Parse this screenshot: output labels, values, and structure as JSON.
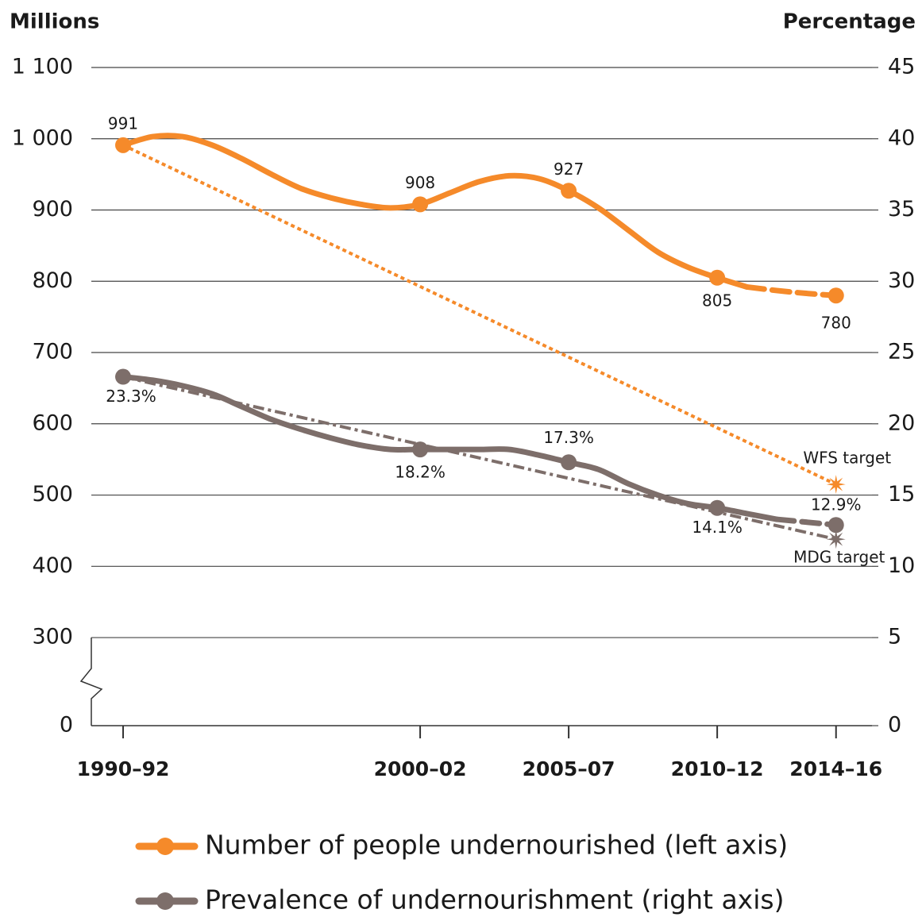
{
  "chart_data": {
    "type": "line",
    "y_label": "Millions",
    "y2_label": "Percentage",
    "x": [
      1991,
      1992,
      1993,
      1994,
      1995,
      1996,
      1997,
      1998,
      1999,
      2000,
      2001,
      2002,
      2003,
      2004,
      2005,
      2006,
      2007,
      2008,
      2009,
      2010,
      2011,
      2012,
      2013,
      2014,
      2015
    ],
    "xlim": [
      1989.93,
      2016.21
    ],
    "xticks": [
      {
        "value": 1991,
        "label": "1990–92"
      },
      {
        "value": 2001,
        "label": "2000–02"
      },
      {
        "value": 2006,
        "label": "2005–07"
      },
      {
        "value": 2011,
        "label": "2010–12"
      },
      {
        "value": 2015,
        "label": "2014–16"
      }
    ],
    "ylim": [
      0,
      1100
    ],
    "yticks": [
      0,
      300,
      400,
      500,
      600,
      700,
      800,
      900,
      {
        "value": 1000,
        "label": "1 000"
      },
      {
        "value": 1100,
        "label": "1 100"
      }
    ],
    "y2lim": [
      0,
      45
    ],
    "y2ticks": [
      0,
      5,
      10,
      15,
      20,
      25,
      30,
      35,
      40,
      45
    ],
    "axis_break": true,
    "grid": true,
    "series": [
      {
        "name": "Number of people undernourished (left axis)",
        "color": "#f58a2a",
        "axis": "y",
        "dashed_after": 2012,
        "values": [
          991,
          1003,
          1003,
          991,
          972,
          950,
          930,
          917,
          908,
          903,
          908,
          924,
          940,
          948,
          944,
          927,
          903,
          872,
          841,
          820,
          805,
          792,
          787,
          783,
          780
        ]
      },
      {
        "name": "Prevalence of undernourishment (right axis)",
        "color": "#7d6e6a",
        "axis": "y2",
        "dashed_after": 2013,
        "values": [
          23.3,
          23.06,
          22.67,
          22.1,
          21.2,
          20.3,
          19.6,
          19.0,
          18.5,
          18.2,
          18.2,
          18.2,
          18.2,
          18.2,
          17.8,
          17.3,
          16.8,
          15.8,
          15.0,
          14.4,
          14.1,
          13.7,
          13.3,
          13.1,
          12.9
        ],
        "value_labels": [
          "23.3%",
          "18.2%",
          "17.3%",
          "14.1%",
          "12.9%"
        ]
      }
    ],
    "targets": [
      {
        "label": "WFS target",
        "color": "#f58a2a",
        "axis": "y",
        "x": [
          1991,
          2015
        ],
        "values": [
          991,
          515
        ]
      },
      {
        "label": "MDG target",
        "color": "#7d6e6a",
        "axis": "y2",
        "x": [
          1991,
          2015
        ],
        "values": [
          23.3,
          11.9
        ]
      }
    ]
  }
}
